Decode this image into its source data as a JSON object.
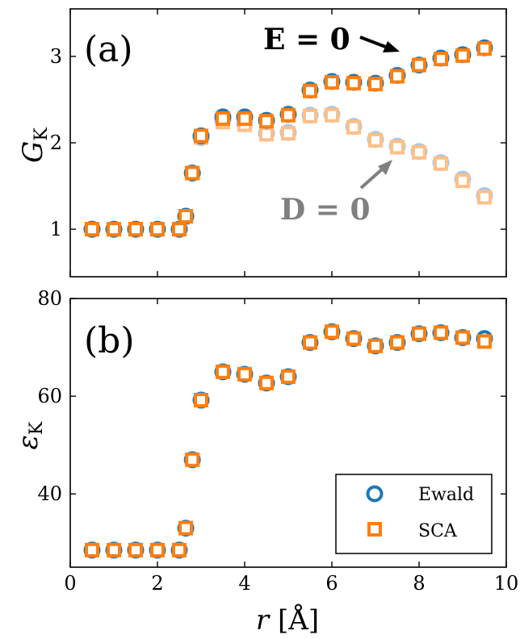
{
  "chart_data": [
    {
      "type": "scatter",
      "panel": "(a)",
      "ylabel": "G_K",
      "ylabel_main": "G",
      "ylabel_sub": "K",
      "xlabel": "",
      "xlim": [
        0,
        10
      ],
      "ylim": [
        0.45,
        3.55
      ],
      "yticks": [
        1,
        2,
        3
      ],
      "grid": false,
      "series": [
        {
          "name": "Ewald",
          "marker": "circle",
          "group": "E = 0",
          "x": [
            0.5,
            1.0,
            1.5,
            2.0,
            2.5,
            2.65,
            2.8,
            3.0,
            3.5,
            4.0,
            4.5,
            5.0,
            5.5,
            6.0,
            6.5,
            7.0,
            7.5,
            8.0,
            8.5,
            9.0,
            9.5
          ],
          "y": [
            1.0,
            1.0,
            1.0,
            1.0,
            1.0,
            1.15,
            1.65,
            2.08,
            2.3,
            2.3,
            2.26,
            2.33,
            2.61,
            2.71,
            2.7,
            2.69,
            2.78,
            2.9,
            2.98,
            3.02,
            3.1
          ]
        },
        {
          "name": "SCA",
          "marker": "square",
          "group": "E = 0",
          "x": [
            0.5,
            1.0,
            1.5,
            2.0,
            2.5,
            2.65,
            2.8,
            3.0,
            3.5,
            4.0,
            4.5,
            5.0,
            5.5,
            6.0,
            6.5,
            7.0,
            7.5,
            8.0,
            8.5,
            9.0,
            9.5
          ],
          "y": [
            1.0,
            1.0,
            1.0,
            1.0,
            1.0,
            1.15,
            1.65,
            2.08,
            2.28,
            2.28,
            2.25,
            2.32,
            2.6,
            2.7,
            2.69,
            2.68,
            2.77,
            2.9,
            2.97,
            3.01,
            3.09
          ]
        },
        {
          "name": "Ewald",
          "marker": "circle",
          "group": "D = 0",
          "faded": true,
          "x": [
            0.5,
            1.0,
            1.5,
            2.0,
            2.5,
            2.65,
            2.8,
            3.0,
            3.5,
            4.0,
            4.5,
            5.0,
            5.5,
            6.0,
            6.5,
            7.0,
            7.5,
            8.0,
            8.5,
            9.0,
            9.5
          ],
          "y": [
            1.0,
            1.0,
            1.0,
            1.0,
            1.0,
            1.15,
            1.65,
            2.06,
            2.26,
            2.22,
            2.11,
            2.12,
            2.32,
            2.33,
            2.19,
            2.04,
            1.96,
            1.9,
            1.77,
            1.58,
            1.39
          ]
        },
        {
          "name": "SCA",
          "marker": "square",
          "group": "D = 0",
          "faded": true,
          "x": [
            0.5,
            1.0,
            1.5,
            2.0,
            2.5,
            2.65,
            2.8,
            3.0,
            3.5,
            4.0,
            4.5,
            5.0,
            5.5,
            6.0,
            6.5,
            7.0,
            7.5,
            8.0,
            8.5,
            9.0,
            9.5
          ],
          "y": [
            1.0,
            1.0,
            1.0,
            1.0,
            1.0,
            1.15,
            1.65,
            2.06,
            2.24,
            2.21,
            2.1,
            2.11,
            2.31,
            2.32,
            2.18,
            2.03,
            1.95,
            1.89,
            1.76,
            1.56,
            1.37
          ]
        }
      ],
      "annotations": [
        {
          "text_main": "E",
          "text_rest": " = 0",
          "points_to": [
            7.5,
            2.78
          ]
        },
        {
          "text_main": "D",
          "text_rest": " = 0",
          "points_to": [
            7.45,
            1.96
          ]
        }
      ]
    },
    {
      "type": "scatter",
      "panel": "(b)",
      "ylabel": "ε_K",
      "ylabel_main": "ε",
      "ylabel_sub": "K",
      "xlabel": "r [Å]",
      "xlabel_var": "r",
      "xlabel_unit": " [Å]",
      "xlim": [
        0,
        10
      ],
      "ylim": [
        25,
        80
      ],
      "xticks": [
        0,
        2,
        4,
        6,
        8,
        10
      ],
      "yticks": [
        40,
        60,
        80
      ],
      "grid": false,
      "legend": "lower-right",
      "series": [
        {
          "name": "Ewald",
          "marker": "circle",
          "x": [
            0.5,
            1.0,
            1.5,
            2.0,
            2.5,
            2.65,
            2.8,
            3.0,
            3.5,
            4.0,
            4.5,
            5.0,
            5.5,
            6.0,
            6.5,
            7.0,
            7.5,
            8.0,
            8.5,
            9.0,
            9.5
          ],
          "y": [
            28.5,
            28.5,
            28.5,
            28.5,
            28.5,
            33.0,
            47.0,
            59.2,
            65.0,
            64.5,
            62.7,
            64.0,
            71.0,
            73.2,
            71.8,
            70.3,
            71.0,
            72.8,
            73.0,
            72.0,
            71.8
          ]
        },
        {
          "name": "SCA",
          "marker": "square",
          "x": [
            0.5,
            1.0,
            1.5,
            2.0,
            2.5,
            2.65,
            2.8,
            3.0,
            3.5,
            4.0,
            4.5,
            5.0,
            5.5,
            6.0,
            6.5,
            7.0,
            7.5,
            8.0,
            8.5,
            9.0,
            9.5
          ],
          "y": [
            28.5,
            28.5,
            28.5,
            28.5,
            28.5,
            33.0,
            47.0,
            59.2,
            65.0,
            64.5,
            62.7,
            64.0,
            71.0,
            73.2,
            71.8,
            70.3,
            71.0,
            72.8,
            73.0,
            72.0,
            71.2
          ]
        }
      ]
    }
  ],
  "colors": {
    "ewald": "#1f77b4",
    "sca": "#ff7f0e",
    "ewald_faded": "#a6c8ea",
    "sca_faded": "#ffbf87",
    "annotation_d": "#808080"
  }
}
